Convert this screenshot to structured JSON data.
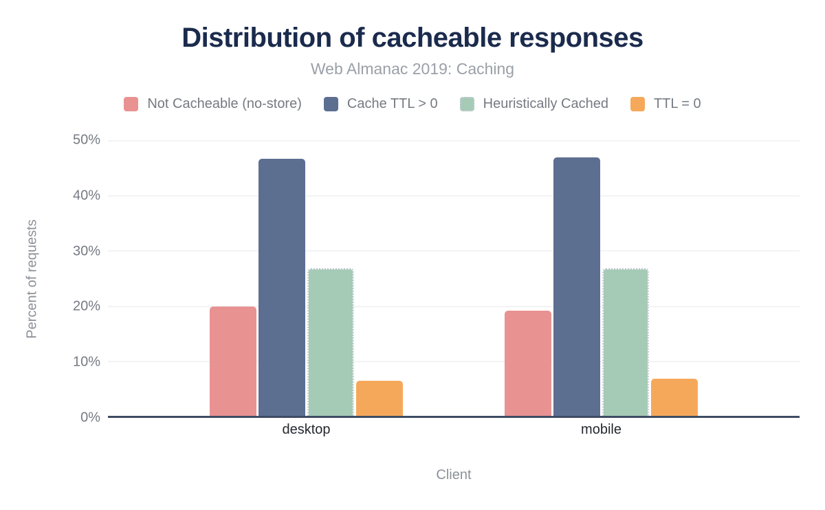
{
  "chart": {
    "title": "Distribution of cacheable responses",
    "subtitle": "Web Almanac 2019: Caching"
  },
  "chart_data": {
    "type": "bar",
    "title": "Distribution of cacheable responses",
    "subtitle": "Web Almanac 2019: Caching",
    "categories": [
      "desktop",
      "mobile"
    ],
    "series": [
      {
        "name": "Not Cacheable (no-store)",
        "color": "#e89292",
        "values": [
          19.8,
          19.1
        ]
      },
      {
        "name": "Cache TTL > 0",
        "color": "#5d6f91",
        "values": [
          46.6,
          46.9
        ]
      },
      {
        "name": "Heuristically Cached",
        "color": "#a5cab6",
        "values": [
          26.8,
          26.8
        ],
        "border_style": "dotted"
      },
      {
        "name": "TTL = 0",
        "color": "#f6a85a",
        "values": [
          6.3,
          6.7
        ]
      }
    ],
    "xlabel": "Client",
    "ylabel": "Percent of requests",
    "ylim": [
      0,
      50
    ],
    "yticks": [
      "0%",
      "10%",
      "20%",
      "30%",
      "40%",
      "50%"
    ],
    "grid": true,
    "legend_position": "top"
  },
  "colors": {
    "title": "#1b2b4d",
    "subtitle": "#9aa0a8",
    "axis_line": "#3d4c63",
    "gridline": "#f2f3f4",
    "tick_text": "#757a82",
    "category_text": "#23282e"
  }
}
